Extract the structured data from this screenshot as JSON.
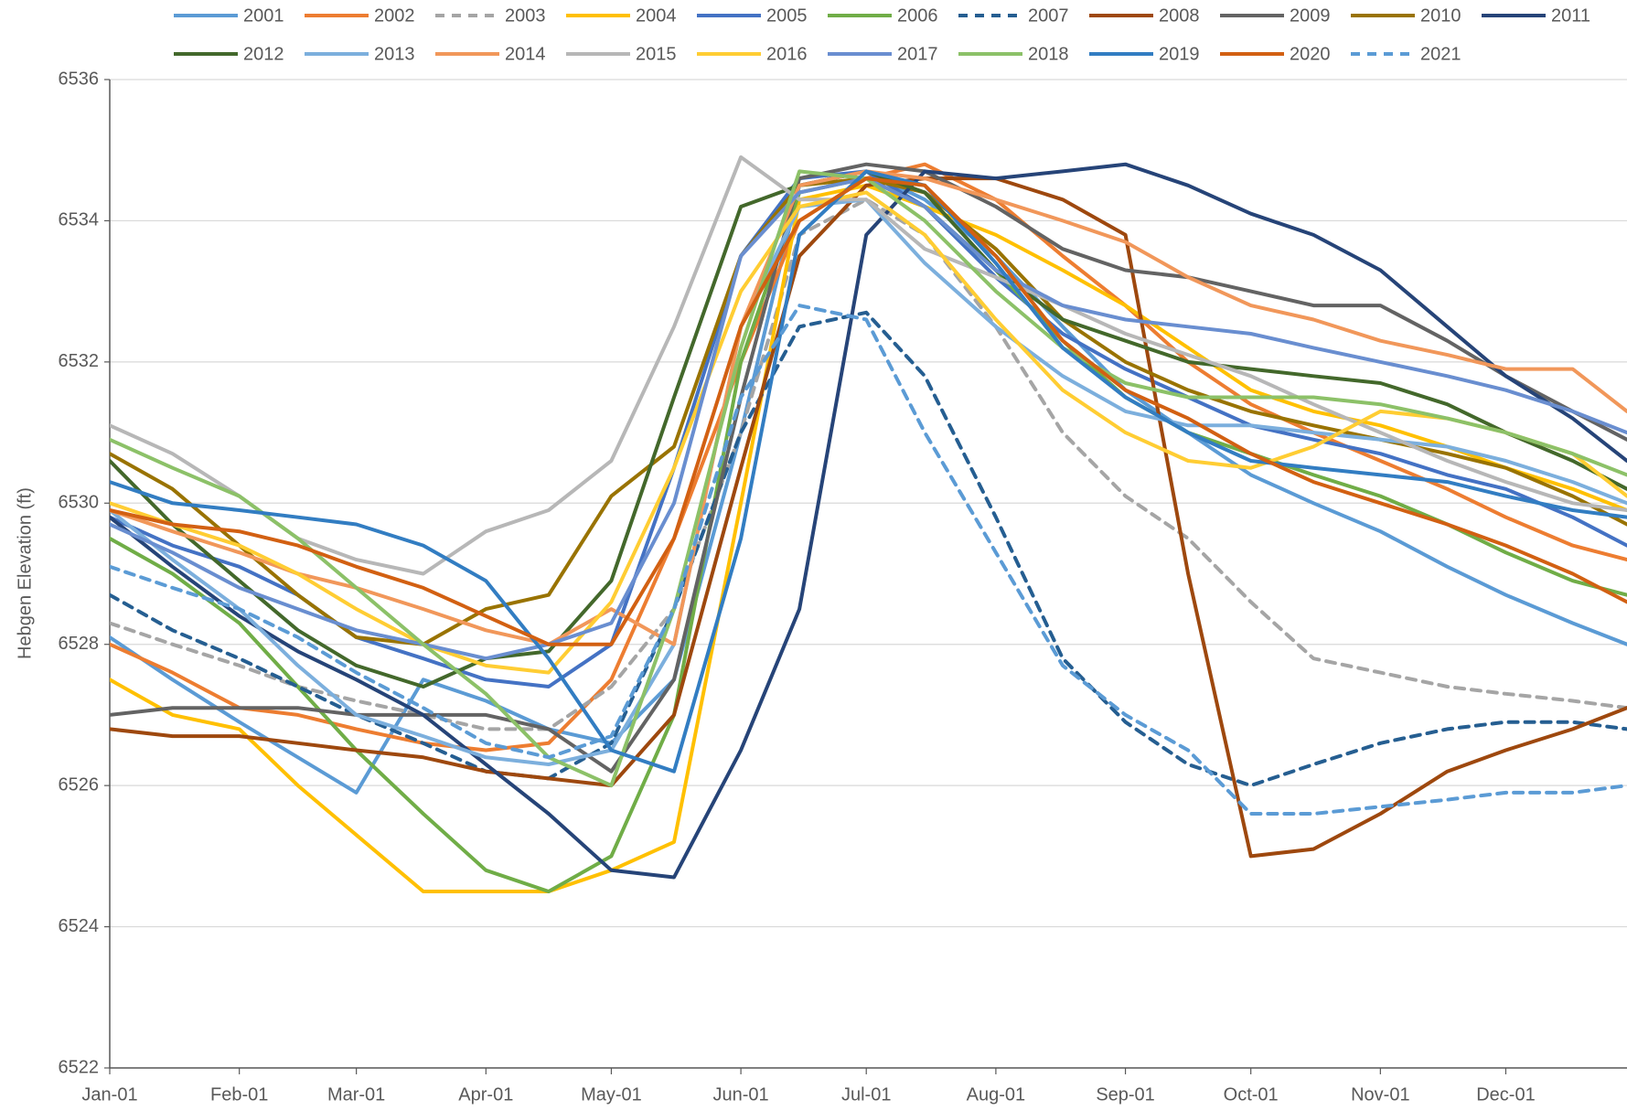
{
  "chart_data": {
    "type": "line",
    "y_label": "Hebgen Elevation (ft)",
    "x": [
      0,
      15,
      31,
      45,
      59,
      75,
      90,
      105,
      120,
      135,
      151,
      165,
      181,
      195,
      212,
      228,
      243,
      258,
      273,
      288,
      304,
      320,
      334,
      350,
      363
    ],
    "xlim": [
      0,
      363
    ],
    "xticks": [
      {
        "value": 0,
        "label": "Jan-01"
      },
      {
        "value": 31,
        "label": "Feb-01"
      },
      {
        "value": 59,
        "label": "Mar-01"
      },
      {
        "value": 90,
        "label": "Apr-01"
      },
      {
        "value": 120,
        "label": "May-01"
      },
      {
        "value": 151,
        "label": "Jun-01"
      },
      {
        "value": 181,
        "label": "Jul-01"
      },
      {
        "value": 212,
        "label": "Aug-01"
      },
      {
        "value": 243,
        "label": "Sep-01"
      },
      {
        "value": 273,
        "label": "Oct-01"
      },
      {
        "value": 304,
        "label": "Nov-01"
      },
      {
        "value": 334,
        "label": "Dec-01"
      }
    ],
    "ylim": [
      6522,
      6536
    ],
    "yticks": [
      6522,
      6524,
      6526,
      6528,
      6530,
      6532,
      6534,
      6536
    ],
    "grid": true,
    "legend": "top",
    "series": [
      {
        "name": "2001",
        "color": "#5b9bd5",
        "dashed": false,
        "values": [
          6528.1,
          6527.5,
          6526.9,
          6526.4,
          6525.9,
          6527.5,
          6527.2,
          6526.8,
          6526.6,
          6527.5,
          6531,
          6534.5,
          6534.7,
          6534.3,
          6533.5,
          6532.5,
          6531.6,
          6531,
          6530.4,
          6530,
          6529.6,
          6529.1,
          6528.7,
          6528.3,
          6528
        ]
      },
      {
        "name": "2002",
        "color": "#ed7d31",
        "dashed": false,
        "values": [
          6528,
          6527.6,
          6527.1,
          6527,
          6526.8,
          6526.6,
          6526.5,
          6526.6,
          6527.5,
          6529.5,
          6532,
          6534,
          6534.6,
          6534.8,
          6534.3,
          6533.5,
          6532.8,
          6532,
          6531.4,
          6531,
          6530.6,
          6530.2,
          6529.8,
          6529.4,
          6529.2
        ]
      },
      {
        "name": "2003",
        "color": "#a5a5a5",
        "dashed": true,
        "values": [
          6528.3,
          6528,
          6527.7,
          6527.4,
          6527.2,
          6527,
          6526.8,
          6526.8,
          6527.4,
          6528.5,
          6531,
          6533.8,
          6534.3,
          6533.8,
          6532.5,
          6531,
          6530.1,
          6529.5,
          6528.6,
          6527.8,
          6527.6,
          6527.4,
          6527.3,
          6527.2,
          6527.1
        ]
      },
      {
        "name": "2004",
        "color": "#ffc000",
        "dashed": false,
        "values": [
          6527.5,
          6527,
          6526.8,
          6526,
          6525.3,
          6524.5,
          6524.5,
          6524.5,
          6524.8,
          6525.2,
          6530,
          6534.3,
          6534.5,
          6534.2,
          6533.8,
          6533.3,
          6532.8,
          6532.2,
          6531.6,
          6531.3,
          6531.1,
          6530.8,
          6530.5,
          6530.2,
          6529.9
        ]
      },
      {
        "name": "2005",
        "color": "#4472c4",
        "dashed": false,
        "values": [
          6529.8,
          6529.4,
          6529.1,
          6528.7,
          6528.1,
          6527.8,
          6527.5,
          6527.4,
          6528,
          6530.5,
          6533.5,
          6534.6,
          6534.7,
          6534.2,
          6533.2,
          6532.4,
          6531.9,
          6531.5,
          6531.1,
          6530.9,
          6530.7,
          6530.4,
          6530.2,
          6529.8,
          6529.4
        ]
      },
      {
        "name": "2006",
        "color": "#70ad47",
        "dashed": false,
        "values": [
          6529.5,
          6529,
          6528.3,
          6527.4,
          6526.5,
          6525.6,
          6524.8,
          6524.5,
          6525,
          6527,
          6532,
          6534.4,
          6534.6,
          6534.2,
          6533.3,
          6532.3,
          6531.5,
          6531,
          6530.7,
          6530.4,
          6530.1,
          6529.7,
          6529.3,
          6528.9,
          6528.7
        ]
      },
      {
        "name": "2007",
        "color": "#255e91",
        "dashed": true,
        "values": [
          6528.7,
          6528.2,
          6527.8,
          6527.4,
          6527,
          6526.6,
          6526.2,
          6526.1,
          6526.6,
          6528.5,
          6531,
          6532.5,
          6532.7,
          6531.8,
          6529.8,
          6527.8,
          6526.9,
          6526.3,
          6526,
          6526.3,
          6526.6,
          6526.8,
          6526.9,
          6526.9,
          6526.8
        ]
      },
      {
        "name": "2008",
        "color": "#9e480e",
        "dashed": false,
        "values": [
          6526.8,
          6526.7,
          6526.7,
          6526.6,
          6526.5,
          6526.4,
          6526.2,
          6526.1,
          6526,
          6527,
          6530.5,
          6533.5,
          6534.5,
          6534.6,
          6534.6,
          6534.3,
          6533.8,
          6529,
          6525,
          6525.1,
          6525.6,
          6526.2,
          6526.5,
          6526.8,
          6527.1
        ]
      },
      {
        "name": "2009",
        "color": "#636363",
        "dashed": false,
        "values": [
          6527,
          6527.1,
          6527.1,
          6527.1,
          6527,
          6527,
          6527,
          6526.8,
          6526.2,
          6527.5,
          6531.5,
          6534.6,
          6534.8,
          6534.7,
          6534.2,
          6533.6,
          6533.3,
          6533.2,
          6533,
          6532.8,
          6532.8,
          6532.3,
          6531.8,
          6531.3,
          6530.9
        ]
      },
      {
        "name": "2010",
        "color": "#997300",
        "dashed": false,
        "values": [
          6530.7,
          6530.2,
          6529.4,
          6528.7,
          6528.1,
          6528,
          6528.5,
          6528.7,
          6530.1,
          6530.8,
          6533.5,
          6534.5,
          6534.6,
          6534.4,
          6533.6,
          6532.6,
          6532,
          6531.6,
          6531.3,
          6531.1,
          6530.9,
          6530.7,
          6530.5,
          6530.1,
          6529.7
        ]
      },
      {
        "name": "2011",
        "color": "#264478",
        "dashed": false,
        "values": [
          6529.8,
          6529.1,
          6528.4,
          6527.9,
          6527.5,
          6527,
          6526.3,
          6525.6,
          6524.8,
          6524.7,
          6526.5,
          6528.5,
          6533.8,
          6534.7,
          6534.6,
          6534.7,
          6534.8,
          6534.5,
          6534.1,
          6533.8,
          6533.3,
          6532.5,
          6531.8,
          6531.2,
          6530.6
        ]
      },
      {
        "name": "2012",
        "color": "#43682b",
        "dashed": false,
        "values": [
          6530.6,
          6529.7,
          6528.9,
          6528.2,
          6527.7,
          6527.4,
          6527.8,
          6527.9,
          6528.9,
          6531.5,
          6534.2,
          6534.5,
          6534.7,
          6534.4,
          6533.3,
          6532.6,
          6532.3,
          6532,
          6531.9,
          6531.8,
          6531.7,
          6531.4,
          6531,
          6530.6,
          6530.2
        ]
      },
      {
        "name": "2013",
        "color": "#7cafdd",
        "dashed": false,
        "values": [
          6529.9,
          6529.2,
          6528.5,
          6527.7,
          6527,
          6526.7,
          6526.4,
          6526.3,
          6526.5,
          6528,
          6532.5,
          6534.2,
          6534.3,
          6533.4,
          6532.5,
          6531.8,
          6531.3,
          6531.1,
          6531.1,
          6531,
          6530.9,
          6530.8,
          6530.6,
          6530.3,
          6530
        ]
      },
      {
        "name": "2014",
        "color": "#f1975a",
        "dashed": false,
        "values": [
          6529.9,
          6529.6,
          6529.3,
          6529,
          6528.8,
          6528.5,
          6528.2,
          6528,
          6528.5,
          6528,
          6532.5,
          6534.5,
          6534.7,
          6534.6,
          6534.3,
          6534,
          6533.7,
          6533.2,
          6532.8,
          6532.6,
          6532.3,
          6532.1,
          6531.9,
          6531.9,
          6531.3
        ]
      },
      {
        "name": "2015",
        "color": "#b7b7b7",
        "dashed": false,
        "values": [
          6531.1,
          6530.7,
          6530.1,
          6529.5,
          6529.2,
          6529,
          6529.6,
          6529.9,
          6530.6,
          6532.5,
          6534.9,
          6534.3,
          6534.3,
          6533.6,
          6533.2,
          6532.8,
          6532.4,
          6532.1,
          6531.8,
          6531.4,
          6531,
          6530.6,
          6530.3,
          6530,
          6529.9
        ]
      },
      {
        "name": "2016",
        "color": "#ffcd33",
        "dashed": false,
        "values": [
          6530,
          6529.7,
          6529.4,
          6529,
          6528.5,
          6528,
          6527.7,
          6527.6,
          6528.6,
          6530.5,
          6533,
          6534.2,
          6534.4,
          6533.8,
          6532.6,
          6531.6,
          6531,
          6530.6,
          6530.5,
          6530.8,
          6531.3,
          6531.2,
          6531,
          6530.7,
          6530.1
        ]
      },
      {
        "name": "2017",
        "color": "#698ed0",
        "dashed": false,
        "values": [
          6529.7,
          6529.3,
          6528.8,
          6528.5,
          6528.2,
          6528,
          6527.8,
          6528,
          6528.3,
          6530,
          6533.5,
          6534.4,
          6534.6,
          6534.2,
          6533.3,
          6532.8,
          6532.6,
          6532.5,
          6532.4,
          6532.2,
          6532,
          6531.8,
          6531.6,
          6531.3,
          6531
        ]
      },
      {
        "name": "2018",
        "color": "#8cc168",
        "dashed": false,
        "values": [
          6530.9,
          6530.5,
          6530.1,
          6529.5,
          6528.8,
          6528,
          6527.3,
          6526.4,
          6526,
          6528.5,
          6532.2,
          6534.7,
          6534.6,
          6534,
          6533,
          6532.2,
          6531.7,
          6531.5,
          6531.5,
          6531.5,
          6531.4,
          6531.2,
          6531,
          6530.7,
          6530.4
        ]
      },
      {
        "name": "2019",
        "color": "#327dc2",
        "dashed": false,
        "values": [
          6530.3,
          6530,
          6529.9,
          6529.8,
          6529.7,
          6529.4,
          6528.9,
          6527.8,
          6526.5,
          6526.2,
          6529.5,
          6533.8,
          6534.7,
          6534.5,
          6533.4,
          6532.2,
          6531.5,
          6531,
          6530.6,
          6530.5,
          6530.4,
          6530.3,
          6530.1,
          6529.9,
          6529.8
        ]
      },
      {
        "name": "2020",
        "color": "#d26012",
        "dashed": false,
        "values": [
          6529.9,
          6529.7,
          6529.6,
          6529.4,
          6529.1,
          6528.8,
          6528.4,
          6528,
          6528,
          6529.5,
          6532.5,
          6534,
          6534.6,
          6534.5,
          6533.5,
          6532.3,
          6531.6,
          6531.2,
          6530.7,
          6530.3,
          6530,
          6529.7,
          6529.4,
          6529,
          6528.6
        ]
      },
      {
        "name": "2021",
        "color": "#5b9bd5",
        "dashed": true,
        "values": [
          6529.1,
          6528.8,
          6528.5,
          6528.1,
          6527.6,
          6527.1,
          6526.6,
          6526.4,
          6526.7,
          6528.5,
          6531.5,
          6532.8,
          6532.6,
          6531,
          6529.3,
          6527.7,
          6527,
          6526.5,
          6525.6,
          6525.6,
          6525.7,
          6525.8,
          6525.9,
          6525.9,
          6526
        ]
      }
    ]
  }
}
